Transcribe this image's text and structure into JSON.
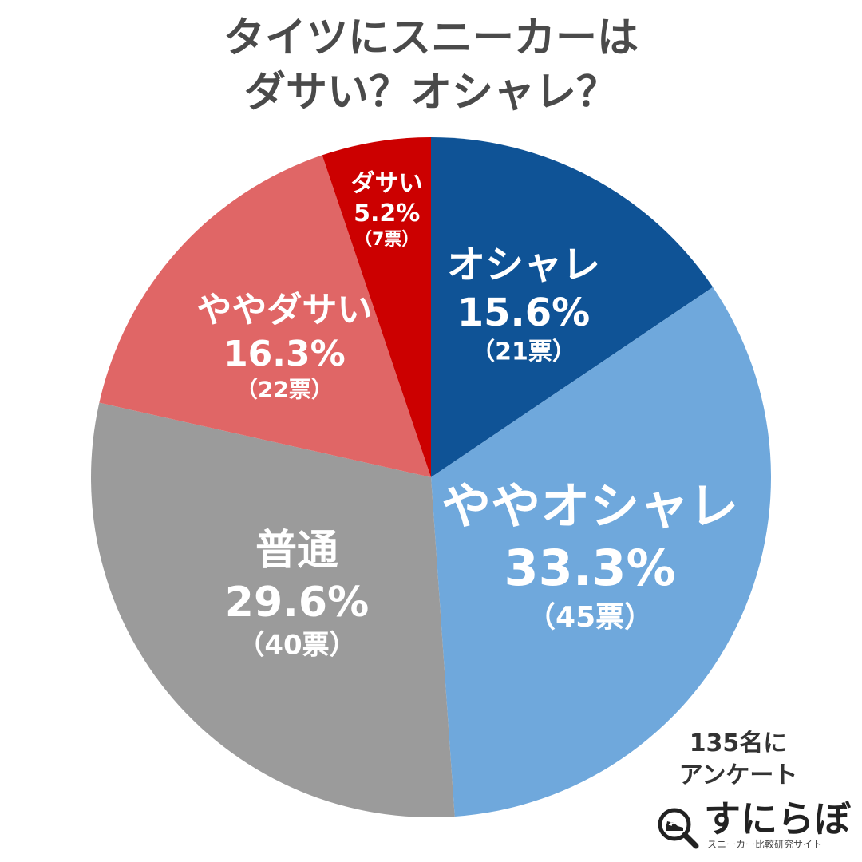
{
  "chart_data": {
    "type": "pie",
    "title_lines": [
      "タイツにスニーカーは",
      "ダサい？オシャレ？"
    ],
    "slices": [
      {
        "label": "オシャレ",
        "percent_label": "15.6%",
        "votes_label": "（21票）",
        "value": 21,
        "color": "#0f5396"
      },
      {
        "label": "ややオシャレ",
        "percent_label": "33.3%",
        "votes_label": "（45票）",
        "value": 45,
        "color": "#6fa8dc"
      },
      {
        "label": "普通",
        "percent_label": "29.6%",
        "votes_label": "（40票）",
        "value": 40,
        "color": "#9b9b9b"
      },
      {
        "label": "ややダサい",
        "percent_label": "16.3%",
        "votes_label": "（22票）",
        "value": 22,
        "color": "#e06666"
      },
      {
        "label": "ダサい",
        "percent_label": "5.2%",
        "votes_label": "（7票）",
        "value": 7,
        "color": "#cc0000"
      }
    ],
    "start": "top",
    "direction": "clockwise"
  },
  "note": {
    "line1": "135名に",
    "line2": "アンケート"
  },
  "brand": {
    "name": "すにらぼ",
    "tagline": "スニーカー比較研究サイト",
    "icon": "magnifier-sneaker-icon"
  }
}
